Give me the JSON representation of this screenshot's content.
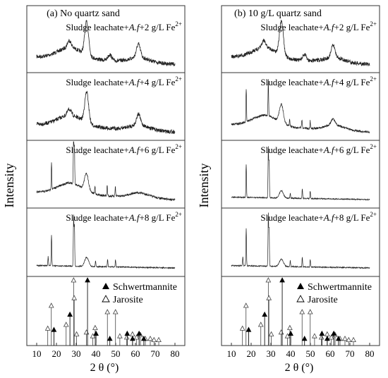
{
  "figure": {
    "y_axis_label": "Intensity",
    "x_axis_label": "2 θ  (°)",
    "tick_labels": [
      "10",
      "20",
      "30",
      "40",
      "50",
      "60",
      "70",
      "80"
    ]
  },
  "chart_data": [
    {
      "type": "line",
      "panel_title": "(a) No quartz sand",
      "xlabel": "2 θ  (°)",
      "ylabel": "Intensity",
      "xlim": [
        5,
        85
      ],
      "xticks": [
        10,
        20,
        30,
        40,
        50,
        60,
        70,
        80
      ],
      "series": [
        {
          "name": "Sludge leachate+A.f+2 g/L Fe2+",
          "label_prefix": "Sludge leachate+",
          "label_italic": "A.f",
          "label_suffix": "+2 g/L Fe",
          "label_sup": "2+",
          "profile": "schwertmannite",
          "peaks": [
            {
              "x": 35.3,
              "height": 0.55
            },
            {
              "x": 61.5,
              "height": 0.22
            },
            {
              "x": 26.5,
              "height": 0.12
            },
            {
              "x": 47.0,
              "height": 0.1
            }
          ]
        },
        {
          "name": "Sludge leachate+A.f+4 g/L Fe2+",
          "label_prefix": "Sludge leachate+",
          "label_italic": "A.f",
          "label_suffix": "+4 g/L Fe",
          "label_sup": "2+",
          "profile": "schwertmannite",
          "peaks": [
            {
              "x": 35.3,
              "height": 0.5
            },
            {
              "x": 61.5,
              "height": 0.18
            },
            {
              "x": 26.5,
              "height": 0.1
            }
          ]
        },
        {
          "name": "Sludge leachate+A.f+6 g/L Fe2+",
          "label_prefix": "Sludge leachate+",
          "label_italic": "A.f",
          "label_suffix": "+6 g/L Fe",
          "label_sup": "2+",
          "profile": "mixed",
          "peaks": [
            {
              "x": 17.5,
              "height": 0.45
            },
            {
              "x": 28.7,
              "height": 0.85
            },
            {
              "x": 29.1,
              "height": 0.6
            },
            {
              "x": 35.2,
              "height": 0.28
            },
            {
              "x": 39.5,
              "height": 0.12
            },
            {
              "x": 45.7,
              "height": 0.18
            },
            {
              "x": 49.8,
              "height": 0.16
            }
          ]
        },
        {
          "name": "Sludge leachate+A.f+8 g/L Fe2+",
          "label_prefix": "Sludge leachate+",
          "label_italic": "A.f",
          "label_suffix": "+8 g/L Fe",
          "label_sup": "2+",
          "profile": "jarosite",
          "peaks": [
            {
              "x": 15.8,
              "height": 0.15
            },
            {
              "x": 17.5,
              "height": 0.5
            },
            {
              "x": 28.7,
              "height": 0.82
            },
            {
              "x": 29.1,
              "height": 0.65
            },
            {
              "x": 35.3,
              "height": 0.15
            },
            {
              "x": 39.8,
              "height": 0.1
            },
            {
              "x": 45.9,
              "height": 0.12
            },
            {
              "x": 49.9,
              "height": 0.12
            }
          ]
        }
      ]
    },
    {
      "type": "line",
      "panel_title": "(b) 10 g/L quartz sand",
      "xlabel": "2 θ  (°)",
      "ylabel": "Intensity",
      "xlim": [
        5,
        85
      ],
      "xticks": [
        10,
        20,
        30,
        40,
        50,
        60,
        70,
        80
      ],
      "series": [
        {
          "name": "Sludge leachate+A.f+2 g/L Fe2+",
          "label_prefix": "Sludge leachate+",
          "label_italic": "A.f",
          "label_suffix": "+2 g/L Fe",
          "label_sup": "2+",
          "profile": "schwertmannite",
          "peaks": [
            {
              "x": 35.3,
              "height": 0.55
            },
            {
              "x": 61.5,
              "height": 0.2
            },
            {
              "x": 26.5,
              "height": 0.12
            },
            {
              "x": 47.0,
              "height": 0.1
            }
          ]
        },
        {
          "name": "Sludge leachate+A.f+4 g/L Fe2+",
          "label_prefix": "Sludge leachate+",
          "label_italic": "A.f",
          "label_suffix": "+4 g/L Fe",
          "label_sup": "2+",
          "profile": "mixed",
          "peaks": [
            {
              "x": 17.5,
              "height": 0.55
            },
            {
              "x": 28.7,
              "height": 0.6
            },
            {
              "x": 35.3,
              "height": 0.3
            },
            {
              "x": 39.5,
              "height": 0.12
            },
            {
              "x": 45.7,
              "height": 0.14
            },
            {
              "x": 49.9,
              "height": 0.12
            },
            {
              "x": 61.5,
              "height": 0.1
            }
          ]
        },
        {
          "name": "Sludge leachate+A.f+6 g/L Fe2+",
          "label_prefix": "Sludge leachate+",
          "label_italic": "A.f",
          "label_suffix": "+6 g/L Fe",
          "label_sup": "2+",
          "profile": "jarosite",
          "peaks": [
            {
              "x": 17.5,
              "height": 0.55
            },
            {
              "x": 28.7,
              "height": 0.82
            },
            {
              "x": 29.1,
              "height": 0.6
            },
            {
              "x": 35.3,
              "height": 0.12
            },
            {
              "x": 39.8,
              "height": 0.08
            },
            {
              "x": 45.9,
              "height": 0.15
            },
            {
              "x": 49.9,
              "height": 0.12
            }
          ]
        },
        {
          "name": "Sludge leachate+A.f+8 g/L Fe2+",
          "label_prefix": "Sludge leachate+",
          "label_italic": "A.f",
          "label_suffix": "+8 g/L Fe",
          "label_sup": "2+",
          "profile": "jarosite",
          "peaks": [
            {
              "x": 15.8,
              "height": 0.15
            },
            {
              "x": 17.5,
              "height": 0.6
            },
            {
              "x": 28.7,
              "height": 0.85
            },
            {
              "x": 29.1,
              "height": 0.6
            },
            {
              "x": 35.3,
              "height": 0.12
            },
            {
              "x": 39.8,
              "height": 0.1
            },
            {
              "x": 45.9,
              "height": 0.15
            },
            {
              "x": 49.9,
              "height": 0.12
            }
          ]
        }
      ],
      "reference_legend": [
        {
          "name": "Schwertmannite",
          "marker": "filled-triangle"
        },
        {
          "name": "Jarosite",
          "marker": "open-triangle"
        }
      ]
    }
  ],
  "reference_patterns": {
    "schwertmannite": [
      {
        "x": 18.2,
        "intensity": 0.22
      },
      {
        "x": 26.3,
        "intensity": 0.46
      },
      {
        "x": 35.2,
        "intensity": 1.0
      },
      {
        "x": 39.5,
        "intensity": 0.16
      },
      {
        "x": 46.5,
        "intensity": 0.08
      },
      {
        "x": 55.3,
        "intensity": 0.16
      },
      {
        "x": 58.0,
        "intensity": 0.08
      },
      {
        "x": 61.3,
        "intensity": 0.16
      },
      {
        "x": 63.7,
        "intensity": 0.08
      }
    ],
    "jarosite": [
      {
        "x": 15.6,
        "intensity": 0.24
      },
      {
        "x": 17.4,
        "intensity": 0.6
      },
      {
        "x": 24.9,
        "intensity": 0.3
      },
      {
        "x": 28.7,
        "intensity": 1.0
      },
      {
        "x": 29.0,
        "intensity": 0.72
      },
      {
        "x": 30.2,
        "intensity": 0.15
      },
      {
        "x": 35.2,
        "intensity": 0.18
      },
      {
        "x": 38.4,
        "intensity": 0.12
      },
      {
        "x": 39.6,
        "intensity": 0.25
      },
      {
        "x": 45.8,
        "intensity": 0.5
      },
      {
        "x": 49.9,
        "intensity": 0.5
      },
      {
        "x": 52.1,
        "intensity": 0.12
      },
      {
        "x": 55.6,
        "intensity": 0.1
      },
      {
        "x": 58.5,
        "intensity": 0.15
      },
      {
        "x": 60.6,
        "intensity": 0.1
      },
      {
        "x": 62.5,
        "intensity": 0.14
      },
      {
        "x": 65.0,
        "intensity": 0.08
      },
      {
        "x": 67.5,
        "intensity": 0.08
      },
      {
        "x": 69.4,
        "intensity": 0.06
      },
      {
        "x": 71.8,
        "intensity": 0.06
      }
    ]
  },
  "style": {
    "line_color": "#222222",
    "frame_color": "#333333",
    "background": "#ffffff"
  }
}
